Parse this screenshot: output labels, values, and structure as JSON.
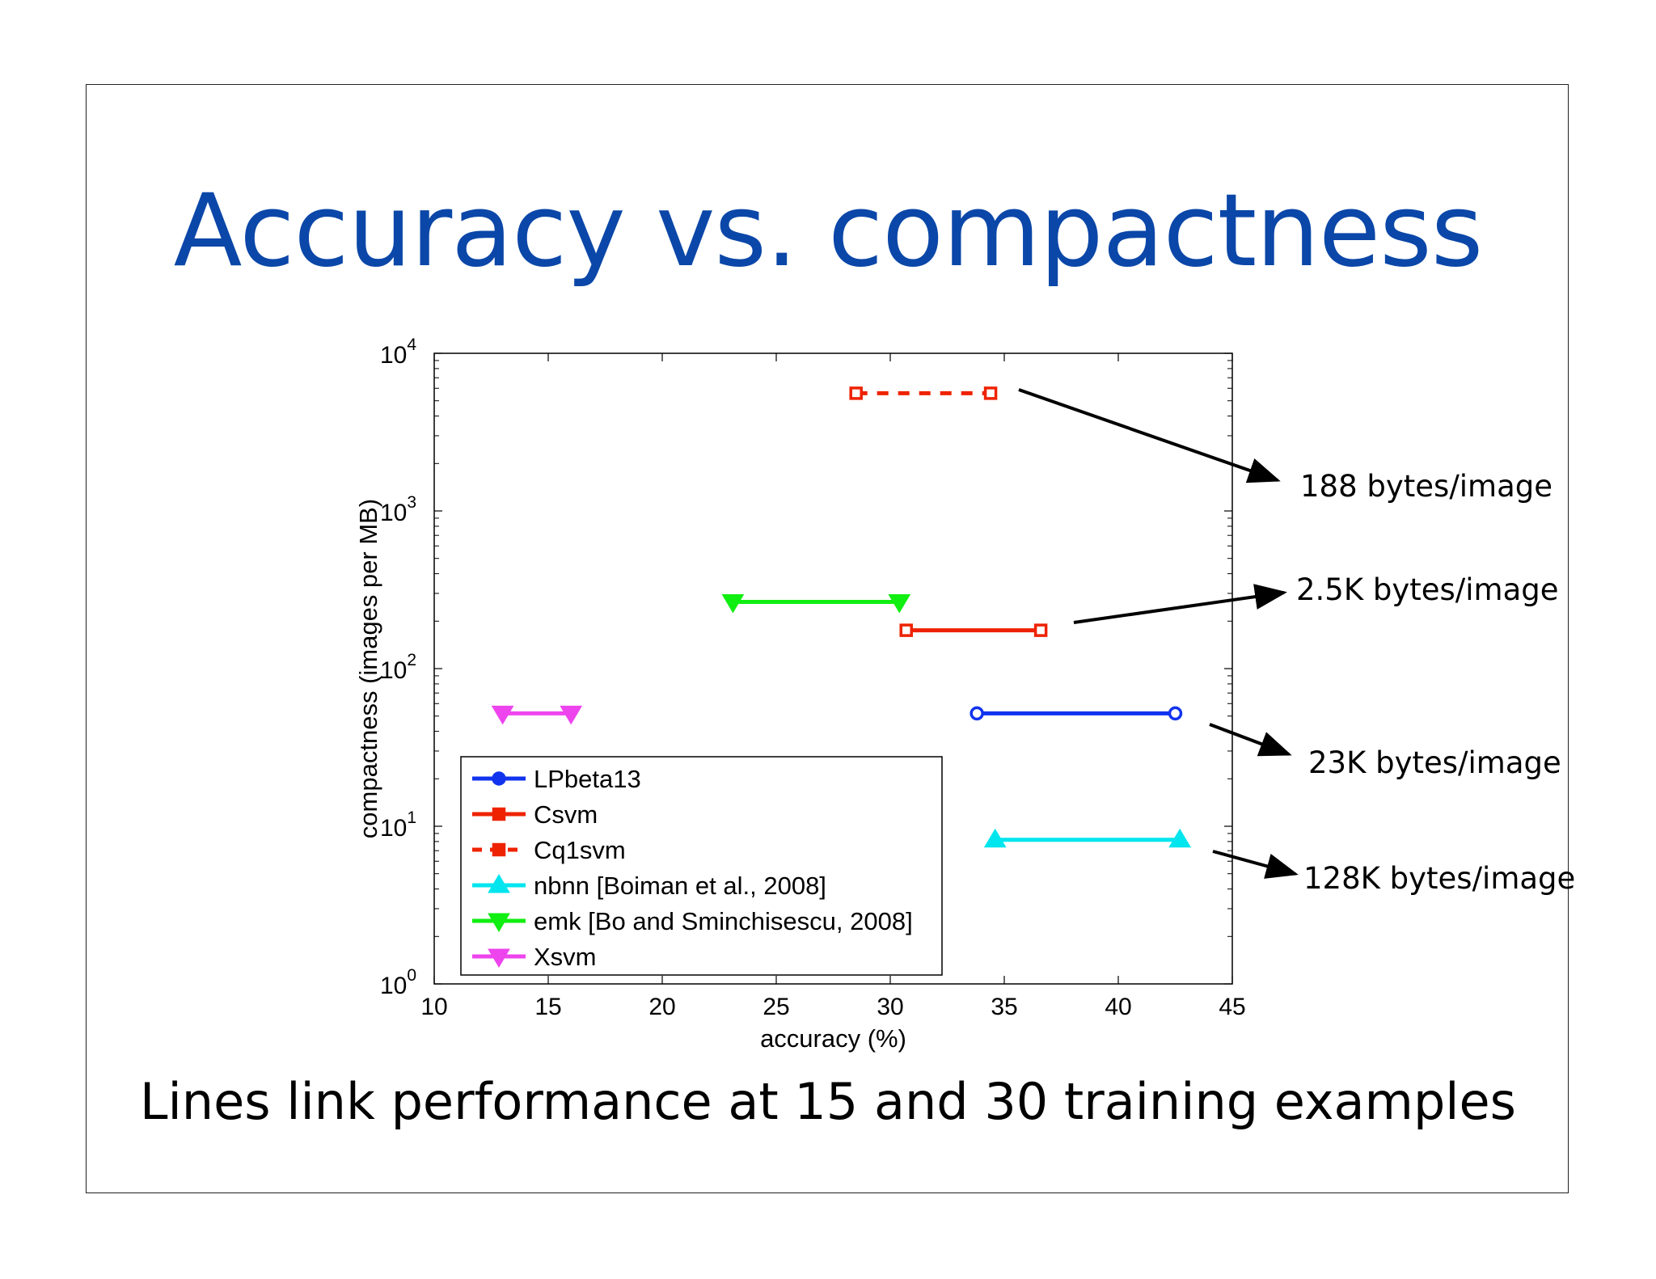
{
  "slide": {
    "title": "Accuracy vs. compactness",
    "caption": "Lines link performance at 15 and 30 training examples"
  },
  "chart_data": {
    "type": "line",
    "title": "",
    "xlabel": "accuracy (%)",
    "ylabel": "compactness (images per MB)",
    "xlim": [
      10,
      45
    ],
    "ylim": [
      1,
      10000
    ],
    "yscale": "log",
    "x_ticks": [
      "10",
      "15",
      "20",
      "25",
      "30",
      "35",
      "40",
      "45"
    ],
    "y_ticks": [
      {
        "value": 1,
        "base": "10",
        "exp": "0"
      },
      {
        "value": 10,
        "base": "10",
        "exp": "1"
      },
      {
        "value": 100,
        "base": "10",
        "exp": "2"
      },
      {
        "value": 1000,
        "base": "10",
        "exp": "3"
      },
      {
        "value": 10000,
        "base": "10",
        "exp": "4"
      }
    ],
    "legend_position": "bottom-left",
    "grid": false,
    "series": [
      {
        "name": "LPbeta13",
        "color": "#1133ee",
        "marker": "circle",
        "dash": false,
        "x": [
          33.8,
          42.5
        ],
        "y": [
          52,
          52
        ]
      },
      {
        "name": "Csvm",
        "color": "#ee2200",
        "marker": "square",
        "dash": false,
        "x": [
          30.7,
          36.6
        ],
        "y": [
          175,
          175
        ]
      },
      {
        "name": "Cq1svm",
        "color": "#ee2200",
        "marker": "square",
        "dash": true,
        "x": [
          28.5,
          34.4
        ],
        "y": [
          5580,
          5580
        ]
      },
      {
        "name": "nbnn [Boiman et al., 2008]",
        "color": "#00e5ee",
        "marker": "triangle-up",
        "dash": false,
        "x": [
          34.6,
          42.7
        ],
        "y": [
          8.2,
          8.2
        ]
      },
      {
        "name": "emk [Bo and Sminchisescu, 2008]",
        "color": "#11ee11",
        "marker": "triangle-down",
        "dash": false,
        "x": [
          23.1,
          30.4
        ],
        "y": [
          265,
          265
        ]
      },
      {
        "name": "Xsvm",
        "color": "#ee44ee",
        "marker": "triangle-down",
        "dash": false,
        "x": [
          13.0,
          16.0
        ],
        "y": [
          52,
          52
        ]
      }
    ],
    "annotations": [
      {
        "text": "188 bytes/image"
      },
      {
        "text": "2.5K bytes/image"
      },
      {
        "text": "23K bytes/image"
      },
      {
        "text": "128K bytes/image"
      }
    ]
  }
}
